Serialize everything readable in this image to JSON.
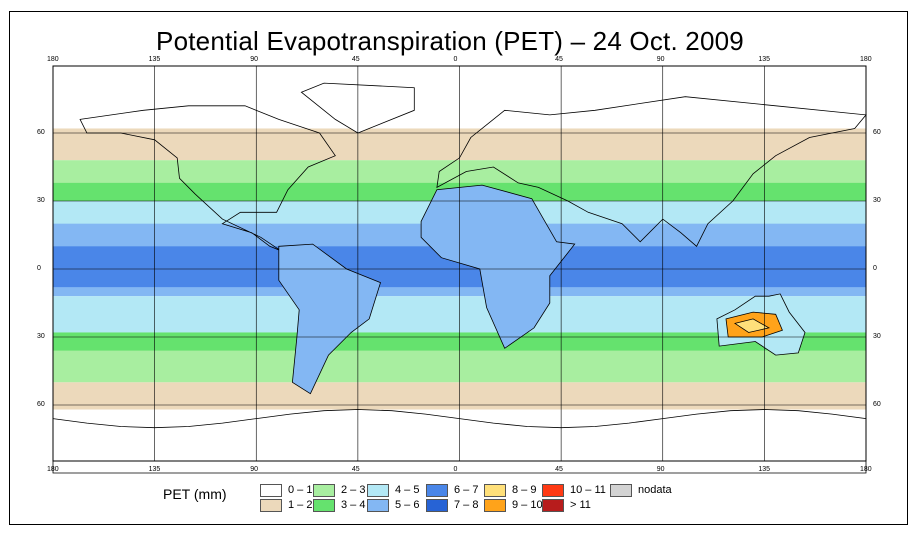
{
  "title": "Potential Evapotranspiration (PET) – 24 Oct. 2009",
  "longitude_ticks": [
    "180",
    "135",
    "90",
    "45",
    "0",
    "45",
    "90",
    "135",
    "180"
  ],
  "latitude_ticks": [
    "60",
    "30",
    "0",
    "30",
    "60"
  ],
  "legend": {
    "title": "PET (mm)",
    "items": [
      {
        "label": "0 – 1",
        "color": "#ffffff"
      },
      {
        "label": "1 – 2",
        "color": "#ecd9bb"
      },
      {
        "label": "2 – 3",
        "color": "#a8eea0"
      },
      {
        "label": "3 – 4",
        "color": "#65e26e"
      },
      {
        "label": "4 – 5",
        "color": "#b3e8f5"
      },
      {
        "label": "5 – 6",
        "color": "#83b7f3"
      },
      {
        "label": "6 – 7",
        "color": "#4a86e8"
      },
      {
        "label": "7 – 8",
        "color": "#2763d5"
      },
      {
        "label": "8 – 9",
        "color": "#ffe07a"
      },
      {
        "label": "9 – 10",
        "color": "#ffa31a"
      },
      {
        "label": "10 – 11",
        "color": "#ff3a14"
      },
      {
        "label": "> 11",
        "color": "#b71c1c"
      },
      {
        "label": "nodata",
        "color": "#d3d3d3"
      }
    ]
  },
  "map_layers": {
    "ocean_color": "#ffffff",
    "band_polar_color": "#ecd9bb",
    "band_mid_color": "#a8eea0",
    "band_mid2_color": "#65e26e",
    "band_subtrop_color": "#b3e8f5",
    "band_trop_color": "#83b7f3",
    "band_eq_color": "#4a86e8",
    "hot_color": "#ffa31a",
    "hot2_color": "#ffe07a"
  }
}
